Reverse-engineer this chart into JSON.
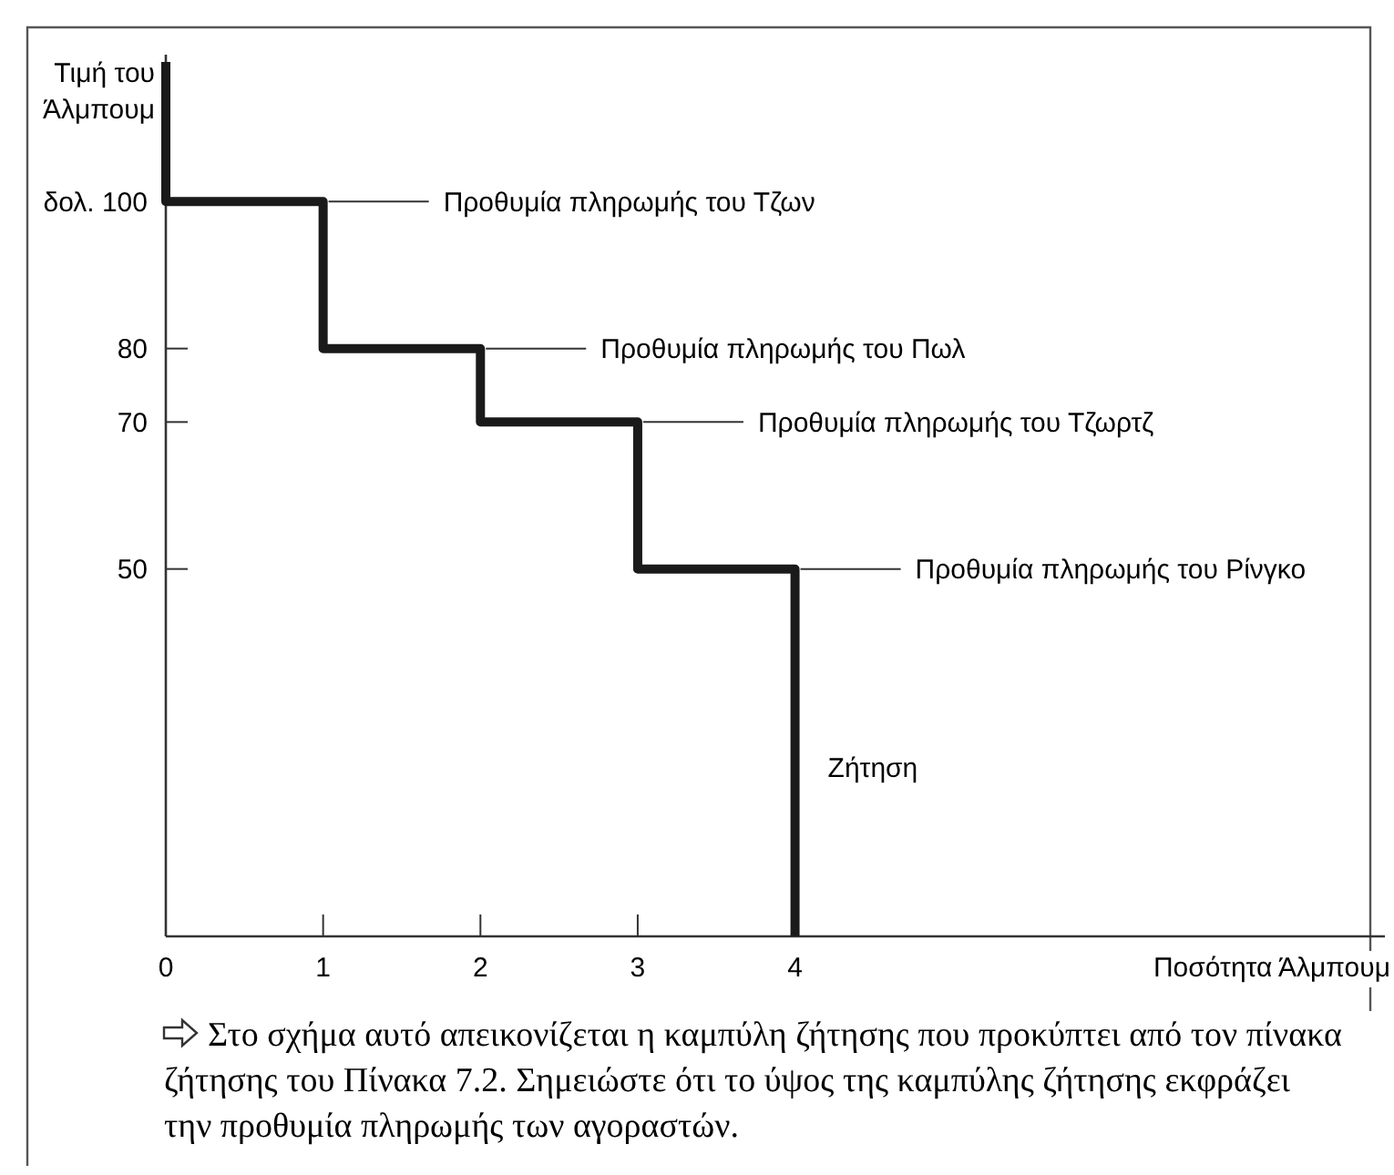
{
  "chart_data": {
    "type": "line",
    "ylabel": "Τιμή του Άλμπουμ",
    "xlabel": "Ποσότητα Άλμπουμ",
    "xlim": [
      0,
      7.75
    ],
    "ylim": [
      0,
      120
    ],
    "xticks": [
      0,
      1,
      2,
      3,
      4
    ],
    "yticks": [
      {
        "value": 100,
        "label": "δολ. 100"
      },
      80,
      70,
      50
    ],
    "grid": false,
    "marker": "none",
    "line_style": "solid",
    "series": [
      {
        "color": "#1a1a1a",
        "x": [
          0,
          0,
          1,
          1,
          2,
          2,
          3,
          3,
          4,
          4
        ],
        "values": [
          119,
          100,
          100,
          80,
          80,
          70,
          70,
          50,
          50,
          0
        ]
      }
    ],
    "annotations": [
      {
        "text": "Προθυμία πληρωμής του Τζων",
        "x": 1,
        "y": 100
      },
      {
        "text": "Προθυμία πληρωμής του Πωλ",
        "x": 2,
        "y": 80
      },
      {
        "text": "Προθυμία πληρωμής του Τζωρτζ",
        "x": 3,
        "y": 70
      },
      {
        "text": "Προθυμία πληρωμής του Ρίνγκο",
        "x": 4,
        "y": 50
      },
      {
        "text": "Ζήτηση",
        "x": 4,
        "y": 23
      },
      "Στο σχήμα αυτό απεικονίζεται η καμπύλη ζήτησης που προκύπτει από τον πίνακα ζήτησης του Πίνακα 7.2. Σημειώστε ότι το ύψος της καμπύλης ζήτησης εκφράζει την προθυμία πληρωμής των αγοραστών."
    ]
  }
}
